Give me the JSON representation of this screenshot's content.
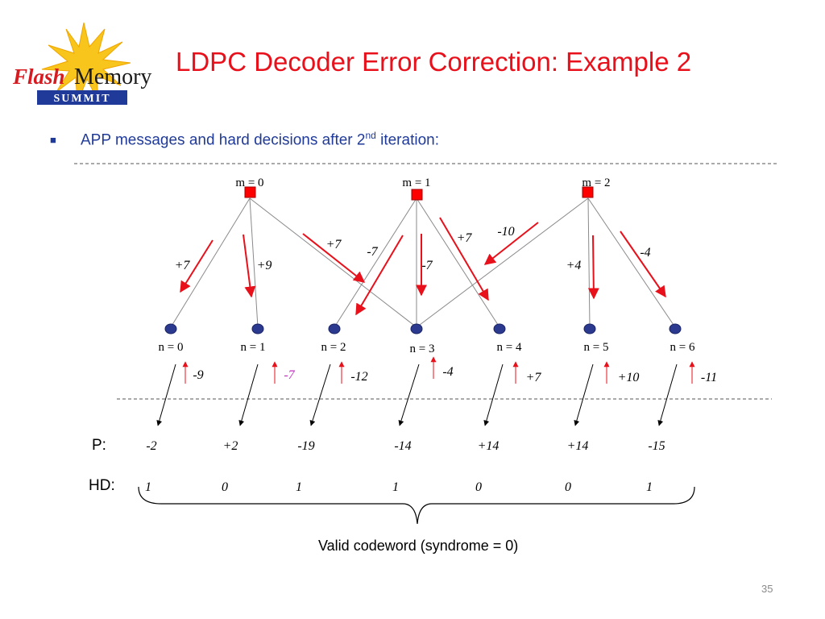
{
  "logo": {
    "word1": "Flash",
    "word2": "Memory",
    "word3": "SUMMIT"
  },
  "title": "LDPC Decoder Error Correction: Example 2",
  "bullet": {
    "text_before": "APP messages and hard decisions after 2",
    "superscript": "nd",
    "text_after": " iteration:"
  },
  "check_nodes": [
    "m = 0",
    "m = 1",
    "m = 2"
  ],
  "variable_nodes": [
    "n = 0",
    "n = 1",
    "n = 2",
    "n = 3",
    "n = 4",
    "n = 5",
    "n = 6"
  ],
  "check_to_variable_messages": [
    "+7",
    "+9",
    "+7",
    "-7",
    "-7",
    "+7",
    "-10",
    "+4",
    "-4"
  ],
  "channel_values": [
    "-9",
    "-7",
    "-12",
    "-4",
    "+7",
    "+10",
    "-11"
  ],
  "p_row": {
    "label": "P:",
    "values": [
      "-2",
      "+2",
      "-19",
      "-14",
      "+14",
      "+14",
      "-15"
    ]
  },
  "hd_row": {
    "label": "HD:",
    "values": [
      "1",
      "0",
      "1",
      "1",
      "0",
      "0",
      "1"
    ]
  },
  "brace_caption": "Valid codeword (syndrome = 0)",
  "page_number": "35",
  "colors": {
    "title": "#e8101a",
    "bullet": "#1f3a99",
    "arrow": "#e8101a",
    "node": "#2b3a8f",
    "check": "#ff0000",
    "highlight": "#c030c0"
  }
}
